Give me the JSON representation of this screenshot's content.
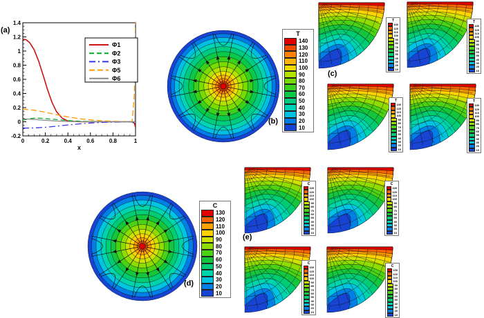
{
  "palettes": {
    "t14": [
      "#e00000",
      "#f04800",
      "#ff8200",
      "#ffb600",
      "#ecdf00",
      "#b2e400",
      "#78dc00",
      "#3bd01b",
      "#0ac84a",
      "#00cc80",
      "#00d4b4",
      "#00bfe4",
      "#007ce8",
      "#1844d4"
    ],
    "v13": [
      "#e00000",
      "#f76300",
      "#ffa200",
      "#ffd200",
      "#cfe200",
      "#8edc00",
      "#4cd214",
      "#14c63e",
      "#00cc74",
      "#00d4ac",
      "#00c4e0",
      "#0080e6",
      "#1844d4"
    ]
  },
  "chart_data": [
    {
      "id": "a",
      "type": "line",
      "label": "(a)",
      "title": "",
      "xlabel": "x",
      "ylabel": "",
      "xlim": [
        0,
        1
      ],
      "ylim": [
        -0.2,
        1.4
      ],
      "xticks": [
        "0",
        "0.2",
        "0.4",
        "0.6",
        "0.8",
        "1"
      ],
      "yticks": [
        "-0.2",
        "0",
        "0.2",
        "0.4",
        "0.6",
        "0.8",
        "1",
        "1.2",
        "1.4"
      ],
      "grid": false,
      "legend_position": "upper right",
      "series": [
        {
          "name": "Φ1",
          "color": "#cc1111",
          "dash": "solid",
          "width": 1.6,
          "x": [
            0,
            0.03,
            0.06,
            0.1,
            0.14,
            0.18,
            0.22,
            0.26,
            0.3,
            0.35,
            0.4,
            0.5,
            0.6,
            0.7,
            0.8,
            0.9,
            0.97,
            0.99,
            1.0
          ],
          "y": [
            1.17,
            1.16,
            1.12,
            1.02,
            0.86,
            0.66,
            0.45,
            0.27,
            0.14,
            0.05,
            0.01,
            0,
            0,
            0,
            0,
            0,
            0,
            -0.02,
            -0.08
          ]
        },
        {
          "name": "Φ2",
          "color": "#00aa22",
          "dash": "7 4",
          "width": 1.3,
          "x": [
            0,
            0.05,
            0.1,
            0.15,
            0.2,
            0.3,
            0.4,
            0.5,
            0.6,
            0.7,
            0.8,
            0.9,
            0.99,
            1.0
          ],
          "y": [
            0.02,
            0.042,
            0.05,
            0.05,
            0.045,
            0.03,
            0.017,
            0.008,
            0.003,
            0.001,
            0,
            0,
            0,
            0.02
          ]
        },
        {
          "name": "Φ3",
          "color": "#3333ee",
          "dash": "9 4 2 4",
          "width": 1.3,
          "x": [
            0,
            0.1,
            0.2,
            0.3,
            0.4,
            0.5,
            0.6,
            0.7,
            0.8,
            0.9,
            0.97,
            1.0
          ],
          "y": [
            -0.09,
            -0.088,
            -0.078,
            -0.062,
            -0.045,
            -0.03,
            -0.018,
            -0.01,
            -0.005,
            -0.002,
            -0.001,
            -0.05
          ]
        },
        {
          "name": "Φ5",
          "color": "#ff9900",
          "dash": "8 4",
          "width": 1.3,
          "x": [
            0,
            0.1,
            0.2,
            0.3,
            0.4,
            0.5,
            0.6,
            0.7,
            0.8,
            0.9,
            0.97,
            0.99,
            1.0
          ],
          "y": [
            0.18,
            0.163,
            0.135,
            0.1,
            0.068,
            0.043,
            0.026,
            0.014,
            0.007,
            0.002,
            0,
            0.4,
            1.42
          ]
        },
        {
          "name": "Φ6",
          "color": "#888888",
          "dash": "solid",
          "width": 1.2,
          "x": [
            0,
            0.05,
            0.1,
            0.2,
            0.3,
            0.4,
            0.5,
            0.6,
            0.7,
            0.8,
            0.9,
            0.97,
            0.995,
            1.0
          ],
          "y": [
            0.04,
            0.038,
            0.033,
            0.02,
            0.01,
            0.004,
            0.001,
            0,
            0,
            0,
            0,
            0,
            0,
            1.3
          ]
        }
      ]
    },
    {
      "id": "b",
      "type": "heatmap",
      "shape": "full-circle",
      "label": "(b)",
      "description": "circular contour plot with radial streamlines",
      "colorbar": {
        "title": "T",
        "values": [
          140,
          130,
          120,
          110,
          100,
          90,
          80,
          70,
          60,
          50,
          40,
          30,
          20,
          10
        ]
      }
    },
    {
      "id": "c",
      "type": "heatmap",
      "shape": "quarter-circle-x4",
      "label": "(c)",
      "description": "four quarter-circle contour plots, hot top wall, cold arc",
      "colorbar": {
        "title": "T",
        "values": [
          130,
          120,
          110,
          100,
          90,
          80,
          70,
          60,
          50,
          40,
          30,
          20,
          10
        ]
      }
    },
    {
      "id": "d",
      "type": "heatmap",
      "shape": "full-circle",
      "label": "(d)",
      "description": "circular contour plot with radial streamlines",
      "colorbar": {
        "title": "C",
        "values": [
          130,
          120,
          110,
          100,
          90,
          80,
          70,
          60,
          50,
          40,
          30,
          20,
          10
        ]
      }
    },
    {
      "id": "e",
      "type": "heatmap",
      "shape": "quarter-circle-x4",
      "label": "(e)",
      "description": "four quarter-circle contour plots, hot top wall, cold arc",
      "colorbar": {
        "title": "C",
        "values": [
          130,
          120,
          110,
          100,
          90,
          80,
          70,
          60,
          50,
          40,
          30,
          20,
          10
        ]
      }
    }
  ]
}
